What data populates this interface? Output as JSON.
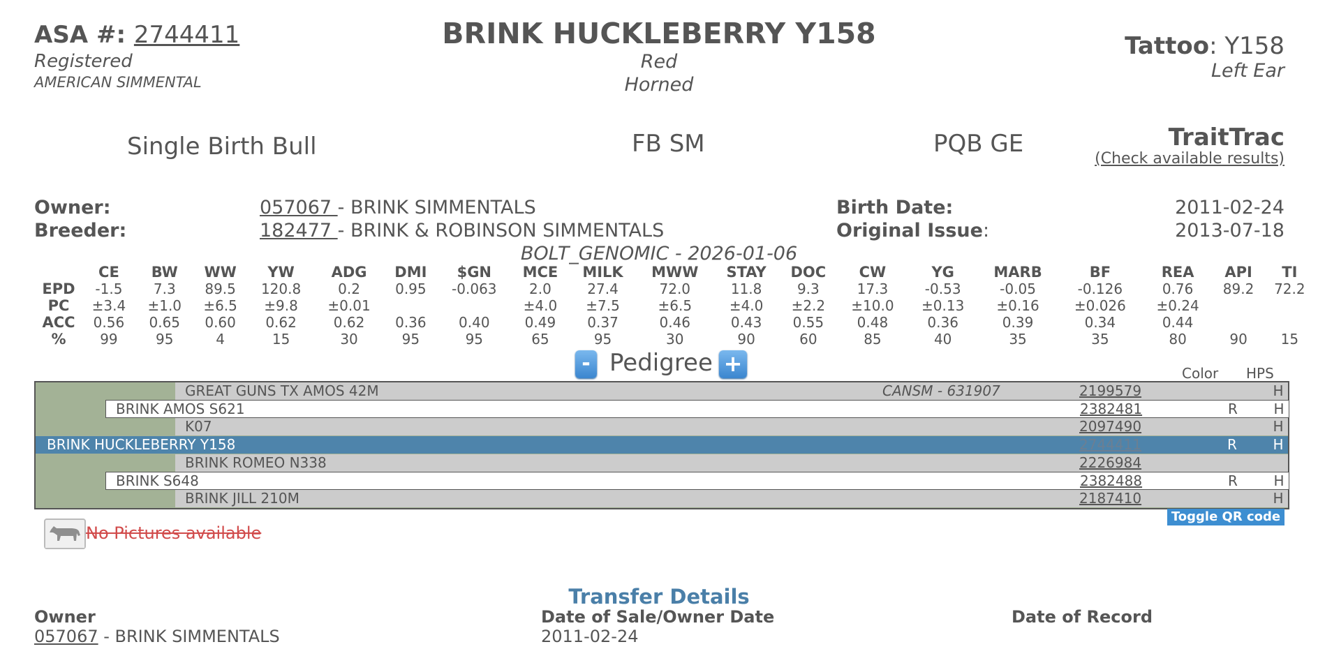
{
  "header": {
    "asa_label": "ASA #",
    "asa_number": "2744411",
    "status": "Registered",
    "breed": "AMERICAN SIMMENTAL",
    "name": "BRINK HUCKLEBERRY Y158",
    "color": "Red",
    "horned": "Horned",
    "tattoo_label": "Tattoo",
    "tattoo": "Y158",
    "tattoo_location": "Left Ear"
  },
  "summary": {
    "birth_type": "Single Birth Bull",
    "herdbook": "FB SM",
    "genetics": "PQB GE",
    "traittrac_label": "TraitTrac",
    "traittrac_link": "(Check available results)"
  },
  "ownership": {
    "owner_label": "Owner:",
    "owner_id": "057067 ",
    "owner_name": " - BRINK SIMMENTALS",
    "breeder_label": "Breeder:",
    "breeder_id": "182477 ",
    "breeder_name": " - BRINK & ROBINSON SIMMENTALS",
    "birth_date_label": "Birth Date:",
    "birth_date": "2011-02-24",
    "original_issue_label": "Original Issue",
    "original_issue": "2013-07-18"
  },
  "epd": {
    "title": "BOLT_GENOMIC - 2026-01-06",
    "columns": [
      "CE",
      "BW",
      "WW",
      "YW",
      "ADG",
      "DMI",
      "$GN",
      "MCE",
      "MILK",
      "MWW",
      "STAY",
      "DOC",
      "CW",
      "YG",
      "MARB",
      "BF",
      "REA",
      "API",
      "TI"
    ],
    "rows": [
      {
        "label": "EPD",
        "values": [
          "-1.5",
          "7.3",
          "89.5",
          "120.8",
          "0.2",
          "0.95",
          "-0.063",
          "2.0",
          "27.4",
          "72.0",
          "11.8",
          "9.3",
          "17.3",
          "-0.53",
          "-0.05",
          "-0.126",
          "0.76",
          "89.2",
          "72.2"
        ]
      },
      {
        "label": "PC",
        "values": [
          "±3.4",
          "±1.0",
          "±6.5",
          "±9.8",
          "±0.01",
          "",
          "",
          "±4.0",
          "±7.5",
          "±6.5",
          "±4.0",
          "±2.2",
          "±10.0",
          "±0.13",
          "±0.16",
          "±0.026",
          "±0.24",
          "",
          ""
        ]
      },
      {
        "label": "ACC",
        "values": [
          "0.56",
          "0.65",
          "0.60",
          "0.62",
          "0.62",
          "0.36",
          "0.40",
          "0.49",
          "0.37",
          "0.46",
          "0.43",
          "0.55",
          "0.48",
          "0.36",
          "0.39",
          "0.34",
          "0.44",
          "",
          ""
        ]
      },
      {
        "label": "%",
        "values": [
          "99",
          "95",
          "4",
          "15",
          "30",
          "95",
          "95",
          "65",
          "95",
          "30",
          "90",
          "60",
          "85",
          "40",
          "35",
          "35",
          "80",
          "90",
          "15"
        ]
      }
    ]
  },
  "pedigree": {
    "minus": "-",
    "plus": "+",
    "title": "Pedigree",
    "color_header": "Color",
    "hps_header": "HPS",
    "rows": [
      {
        "name": "GREAT GUNS TX AMOS 42M",
        "other": "CANSM - 631907",
        "reg": "2199579",
        "color": "",
        "hps": "H"
      },
      {
        "name": "BRINK AMOS S621",
        "other": "",
        "reg": "2382481",
        "color": "R",
        "hps": "H"
      },
      {
        "name": "K07",
        "other": "",
        "reg": "2097490",
        "color": "",
        "hps": "H"
      },
      {
        "name": "BRINK HUCKLEBERRY Y158",
        "other": "",
        "reg": "2744411",
        "color": "R",
        "hps": "H"
      },
      {
        "name": "BRINK ROMEO N338",
        "other": "",
        "reg": "2226984",
        "color": "",
        "hps": ""
      },
      {
        "name": "BRINK S648",
        "other": "",
        "reg": "2382488",
        "color": "R",
        "hps": "H"
      },
      {
        "name": "BRINK JILL 210M",
        "other": "",
        "reg": "2187410",
        "color": "",
        "hps": "H"
      }
    ],
    "qr_toggle": "Toggle QR code",
    "no_pictures": "No Pictures available"
  },
  "transfer": {
    "title": "Transfer Details",
    "owner_header": "Owner",
    "sale_header": "Date of Sale/Owner Date",
    "record_header": "Date of Record",
    "owner_id": "057067",
    "owner_name": " - BRINK SIMMENTALS",
    "sale_date": "2011-02-24",
    "record_date": ""
  }
}
